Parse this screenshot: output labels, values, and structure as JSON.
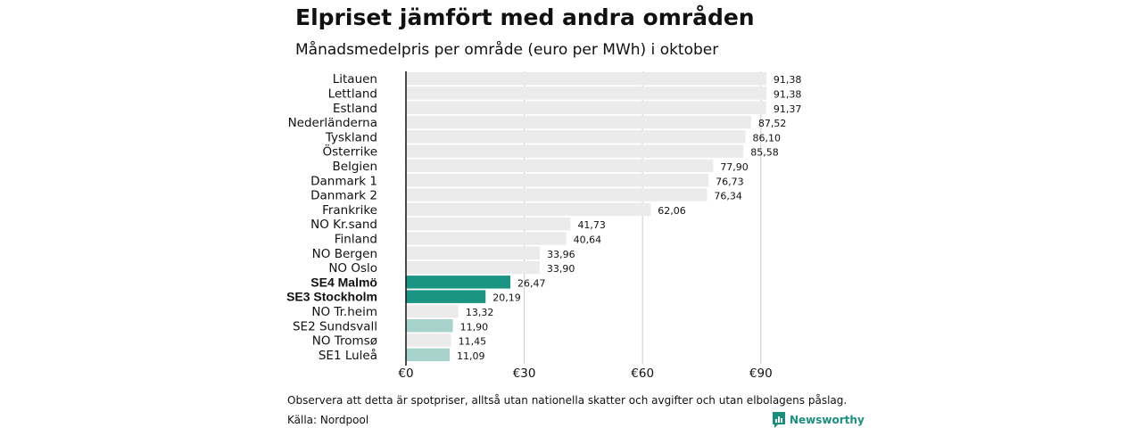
{
  "title": "Elpriset jämfört med andra områden",
  "subtitle": "Månadsmedelpris per område (euro per MWh) i oktober",
  "note": "Observera att detta är spotpriser, alltså utan nationella skatter och avgifter och utan elbolagens påslag.",
  "source": "Källa: Nordpool",
  "brand": {
    "name": "Newsworthy",
    "color": "#1a8f80"
  },
  "colors": {
    "default": "#ebebeb",
    "highlight": "#1a9483",
    "light": "#a8d3cc",
    "grid": "#cccccc",
    "axis": "#111111"
  },
  "chart_data": {
    "type": "bar",
    "orientation": "horizontal",
    "categories": [
      "Litauen",
      "Lettland",
      "Estland",
      "Nederländerna",
      "Tyskland",
      "Österrike",
      "Belgien",
      "Danmark  1",
      "Danmark  2",
      "Frankrike",
      "NO Kr.sand",
      "Finland",
      "NO Bergen",
      "NO Oslo",
      "SE4 Malmö",
      "SE3 Stockholm",
      "NO Tr.heim",
      "SE2  Sundsvall",
      "NO Tromsø",
      "SE1  Luleå"
    ],
    "values": [
      91.38,
      91.38,
      91.37,
      87.52,
      86.1,
      85.58,
      77.9,
      76.73,
      76.34,
      62.06,
      41.73,
      40.64,
      33.96,
      33.9,
      26.47,
      20.19,
      13.32,
      11.9,
      11.45,
      11.09
    ],
    "value_labels": [
      "91,38",
      "91,38",
      "91,37",
      "87,52",
      "86,10",
      "85,58",
      "77,90",
      "76,73",
      "76,34",
      "62,06",
      "41,73",
      "40,64",
      "33,96",
      "33,90",
      "26,47",
      "20,19",
      "13,32",
      "11,90",
      "11,45",
      "11,09"
    ],
    "bar_styles": [
      "default",
      "default",
      "default",
      "default",
      "default",
      "default",
      "default",
      "default",
      "default",
      "default",
      "default",
      "default",
      "default",
      "default",
      "highlight",
      "highlight",
      "default",
      "light",
      "default",
      "light"
    ],
    "bold_labels": [
      "SE4 Malmö",
      "SE3 Stockholm"
    ],
    "xlim": [
      0,
      92
    ],
    "x_ticks": [
      0,
      30,
      60,
      90
    ],
    "x_tick_labels": [
      "€0",
      "€30",
      "€60",
      "€90"
    ],
    "grid": true,
    "legend": "none"
  }
}
